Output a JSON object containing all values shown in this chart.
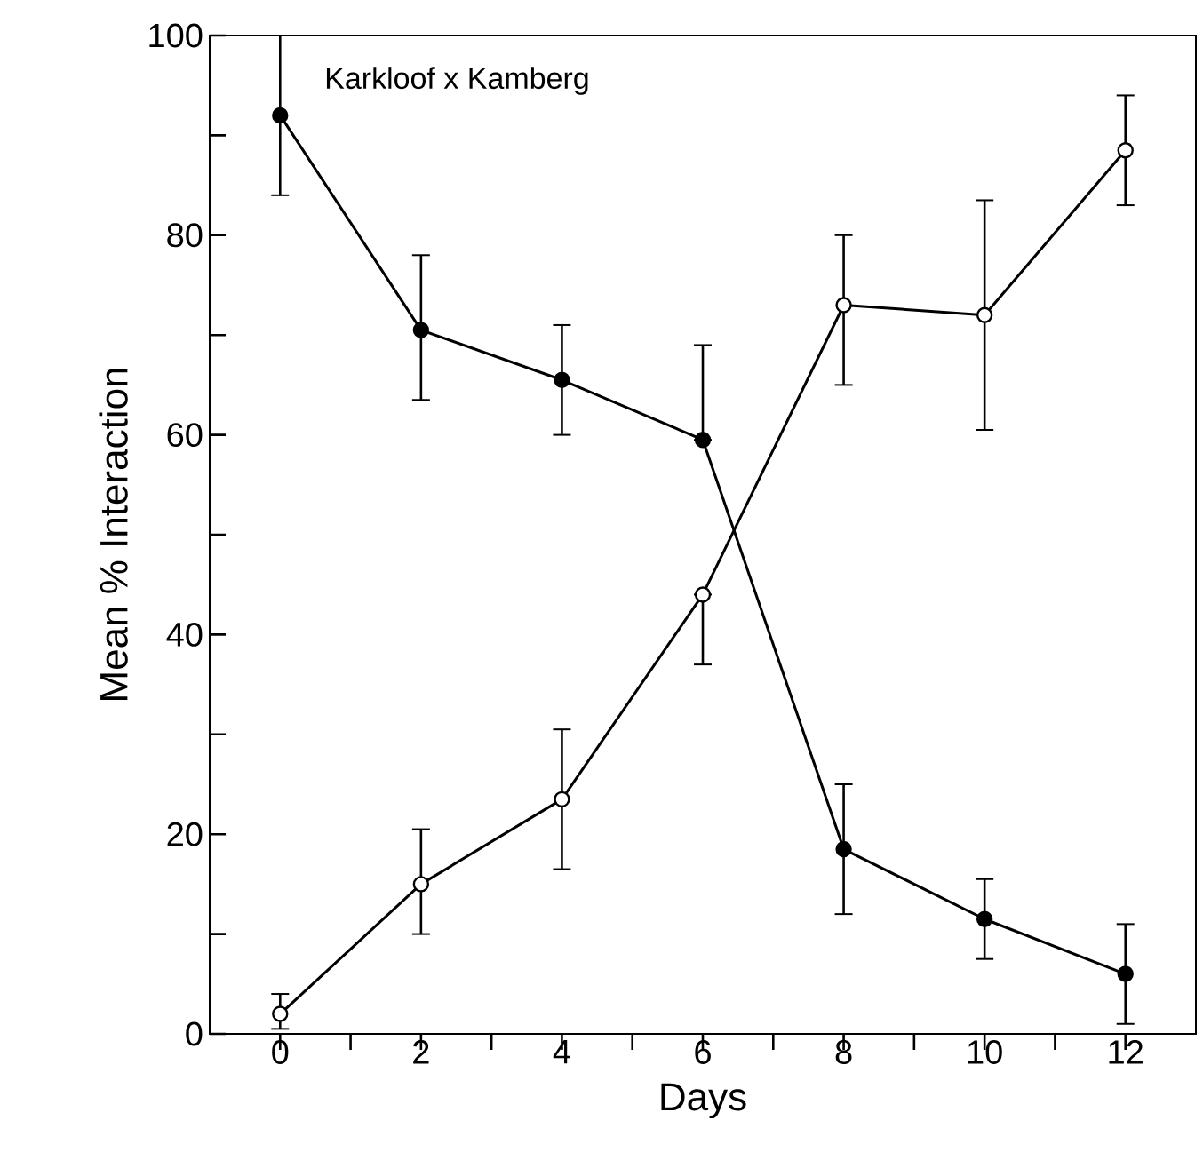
{
  "chart_data": {
    "type": "line",
    "xlabel": "Days",
    "ylabel": "Mean % Interaction",
    "annotations": [
      "Karkloof x Kamberg"
    ],
    "x": [
      0,
      2,
      4,
      6,
      8,
      10,
      12
    ],
    "series": [
      {
        "color": "#000000",
        "values": [
          92,
          70.5,
          65.5,
          59.5,
          18.5,
          11.5,
          6
        ],
        "errors": [
          [
            84,
            100
          ],
          [
            63.5,
            78
          ],
          [
            60,
            71
          ],
          [
            59.5,
            69
          ],
          [
            12,
            25
          ],
          [
            7.5,
            15.5
          ],
          [
            1,
            11
          ]
        ]
      },
      {
        "color": "#000000",
        "values": [
          2,
          15,
          23.5,
          44,
          73,
          72,
          88.5
        ],
        "errors": [
          [
            0.5,
            4
          ],
          [
            10,
            20.5
          ],
          [
            16.5,
            30.5
          ],
          [
            37,
            44
          ],
          [
            65,
            80
          ],
          [
            60.5,
            83.5
          ],
          [
            83,
            94
          ]
        ]
      }
    ],
    "xlim": [
      -1,
      13
    ],
    "xticks": [
      0,
      {
        "value": 1,
        "label": null
      },
      2,
      {
        "value": 3,
        "label": null
      },
      4,
      {
        "value": 5,
        "label": null
      },
      6,
      {
        "value": 7,
        "label": null
      },
      8,
      {
        "value": 9,
        "label": null
      },
      10,
      {
        "value": 11,
        "label": null
      },
      12
    ],
    "ylim": [
      0,
      100
    ],
    "yticks": [
      0,
      {
        "value": 10,
        "label": null
      },
      20,
      {
        "value": 30,
        "label": null
      },
      40,
      {
        "value": 50,
        "label": null
      },
      60,
      {
        "value": 70,
        "label": null
      },
      80,
      {
        "value": 90,
        "label": null
      },
      100
    ],
    "grid": false,
    "marker": "circle",
    "line_style": "solid"
  }
}
